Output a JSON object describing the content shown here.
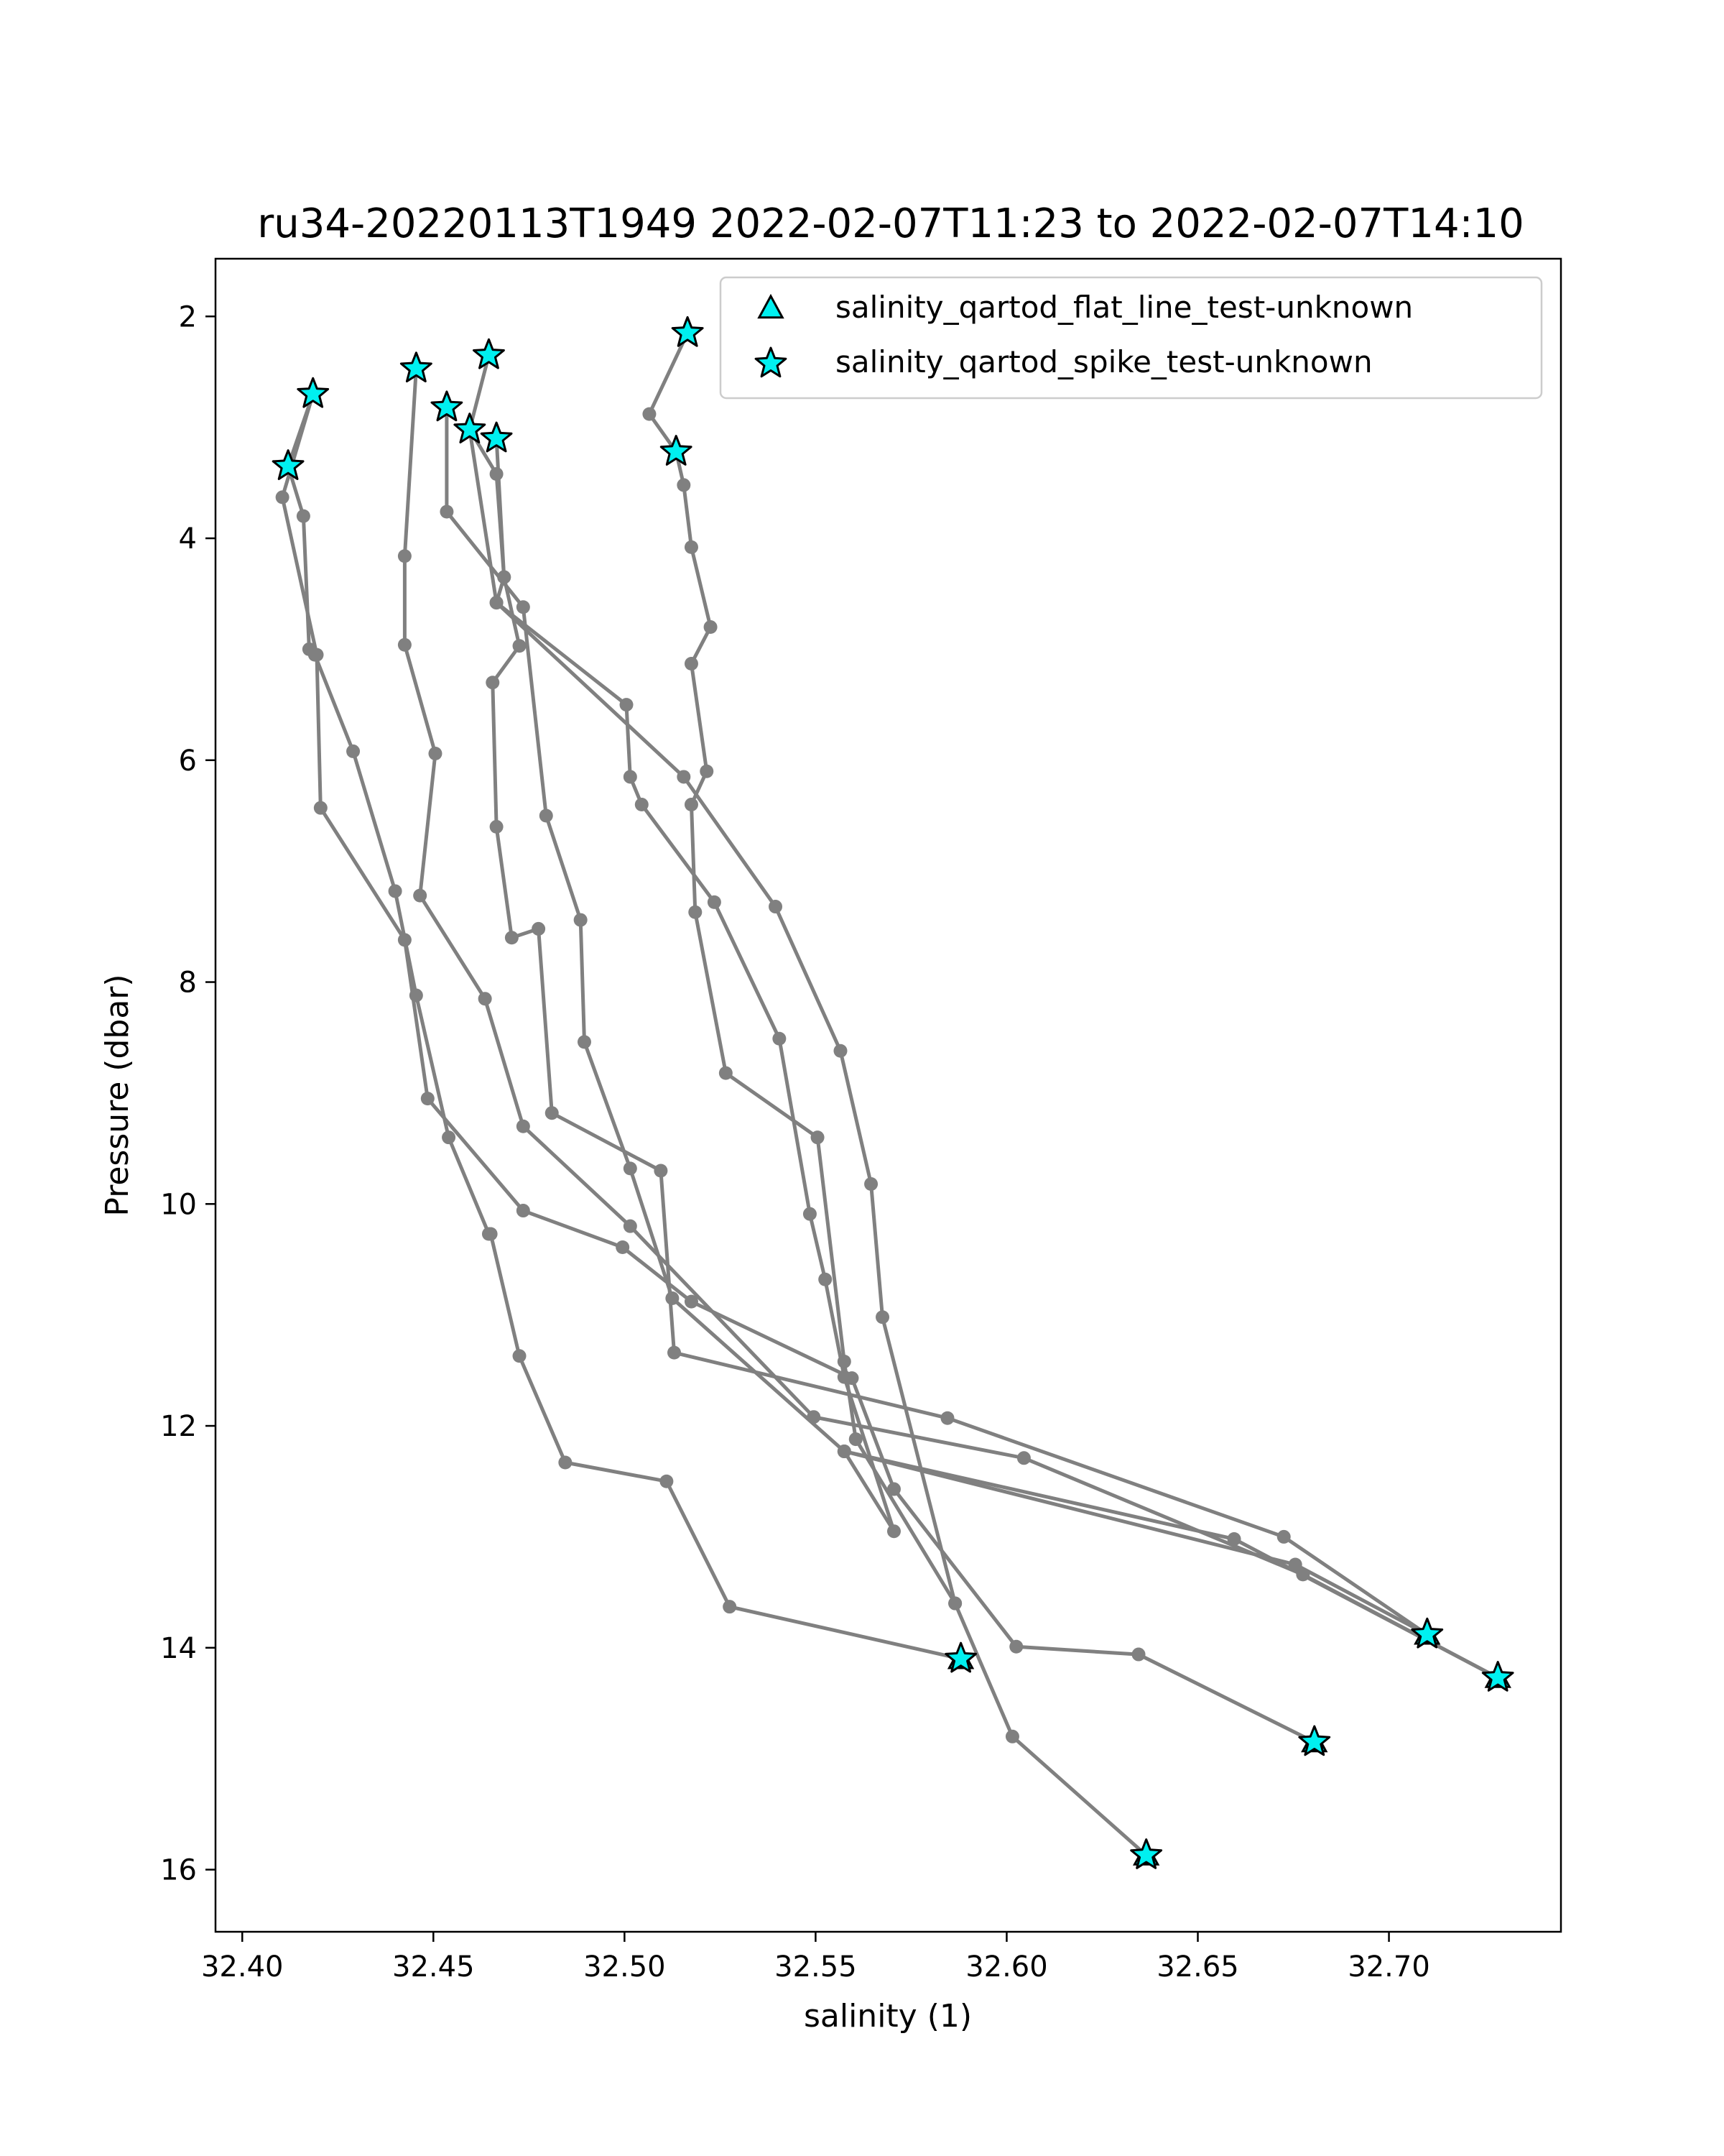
{
  "chart_data": {
    "type": "line",
    "title": "ru34-20220113T1949 2022-02-07T11:23 to 2022-02-07T14:10",
    "xlabel": "salinity (1)",
    "ylabel": "Pressure (dbar)",
    "xlim": [
      32.393,
      32.745
    ],
    "ylim": [
      16.56,
      1.48
    ],
    "y_inverted": true,
    "grid": false,
    "legend_position": "top-right",
    "xticks": [
      32.4,
      32.45,
      32.5,
      32.55,
      32.6,
      32.65,
      32.7
    ],
    "xtick_labels": [
      "32.40",
      "32.45",
      "32.50",
      "32.55",
      "32.60",
      "32.65",
      "32.70"
    ],
    "yticks": [
      2,
      4,
      6,
      8,
      10,
      12,
      14,
      16
    ],
    "ytick_labels": [
      "2",
      "4",
      "6",
      "8",
      "10",
      "12",
      "14",
      "16"
    ],
    "line_color": "#808080",
    "marker_color": "#00f0f0",
    "profiles": [
      {
        "x": [
          32.4185,
          32.412,
          32.416,
          32.4175,
          32.419,
          32.429,
          32.44,
          32.4455,
          32.454,
          32.4645,
          32.465,
          32.4725,
          32.4845,
          32.511,
          32.5275,
          32.588
        ],
        "y": [
          2.7,
          3.35,
          3.8,
          5.0,
          5.05,
          5.92,
          7.18,
          8.12,
          9.4,
          10.27,
          10.27,
          11.37,
          12.33,
          12.5,
          13.63,
          14.1
        ]
      },
      {
        "x": [
          32.4645,
          32.4595,
          32.4665,
          32.4685,
          32.4725,
          32.4655,
          32.4665,
          32.4705,
          32.4775,
          32.481,
          32.5095,
          32.513,
          32.5845,
          32.6725,
          32.71
        ],
        "y": [
          2.35,
          3.02,
          3.42,
          4.35,
          4.97,
          5.3,
          6.6,
          7.6,
          7.52,
          9.18,
          9.7,
          11.34,
          11.93,
          13.0,
          13.88
        ]
      },
      {
        "x": [
          32.5165,
          32.5065,
          32.5135,
          32.5155,
          32.5175,
          32.5225,
          32.5175,
          32.5215,
          32.5175,
          32.5185,
          32.5265,
          32.5505,
          32.5575,
          32.5605,
          32.5865,
          32.6015,
          32.6365
        ],
        "y": [
          2.15,
          2.88,
          3.22,
          3.52,
          4.08,
          4.8,
          5.13,
          6.1,
          6.4,
          7.37,
          8.82,
          9.4,
          11.42,
          12.12,
          13.6,
          14.8,
          15.87
        ]
      },
      {
        "x": [
          32.4185,
          32.4105,
          32.4195,
          32.4205,
          32.4425,
          32.4485,
          32.4735,
          32.4995,
          32.5175,
          32.5595,
          32.5705,
          32.6025,
          32.6345,
          32.6805
        ],
        "y": [
          2.7,
          3.63,
          5.05,
          6.43,
          7.62,
          9.05,
          10.06,
          10.39,
          10.88,
          11.57,
          12.57,
          13.99,
          14.06,
          14.85
        ]
      },
      {
        "x": [
          32.4455,
          32.4425,
          32.4425,
          32.4505,
          32.4465,
          32.4635,
          32.4735,
          32.5015,
          32.5495,
          32.6045,
          32.6775,
          32.7285
        ],
        "y": [
          2.47,
          4.16,
          4.96,
          5.94,
          7.22,
          8.15,
          9.3,
          10.2,
          11.92,
          12.29,
          13.34,
          14.27
        ]
      },
      {
        "x": [
          32.4535,
          32.4535,
          32.4735,
          32.4795,
          32.4885,
          32.4895,
          32.5015,
          32.5125,
          32.5575,
          32.6595,
          32.7285
        ],
        "y": [
          2.82,
          3.76,
          4.62,
          6.5,
          7.44,
          8.54,
          9.68,
          10.85,
          12.23,
          13.02,
          14.27
        ]
      },
      {
        "x": [
          32.4665,
          32.4685,
          32.4665,
          32.5155,
          32.5395,
          32.5565,
          32.5645,
          32.5675,
          32.5865
        ],
        "y": [
          3.1,
          4.35,
          4.58,
          6.15,
          7.32,
          8.62,
          9.82,
          11.02,
          13.6
        ]
      },
      {
        "x": [
          32.4595,
          32.4665,
          32.5005,
          32.5015,
          32.5045,
          32.5235,
          32.5405,
          32.5485,
          32.5525,
          32.5575,
          32.5705,
          32.5575,
          32.6755,
          32.71
        ],
        "y": [
          3.02,
          4.58,
          5.5,
          6.15,
          6.4,
          7.28,
          8.51,
          10.09,
          10.68,
          11.56,
          12.95,
          12.23,
          13.25,
          13.88
        ]
      }
    ],
    "series": [
      {
        "name": "salinity_qartod_flat_line_test-unknown",
        "marker": "triangle",
        "x": [
          32.588,
          32.6805,
          32.6365,
          32.71,
          32.7285
        ],
        "y": [
          14.1,
          14.85,
          15.87,
          13.88,
          14.27
        ]
      },
      {
        "name": "salinity_qartod_spike_test-unknown",
        "marker": "star",
        "x": [
          32.4185,
          32.412,
          32.4455,
          32.4535,
          32.4595,
          32.4645,
          32.4665,
          32.5165,
          32.5135,
          32.588,
          32.6805,
          32.6365,
          32.71,
          32.7285
        ],
        "y": [
          2.7,
          3.35,
          2.47,
          2.82,
          3.02,
          2.35,
          3.1,
          2.15,
          3.22,
          14.1,
          14.85,
          15.87,
          13.88,
          14.27
        ]
      }
    ]
  }
}
